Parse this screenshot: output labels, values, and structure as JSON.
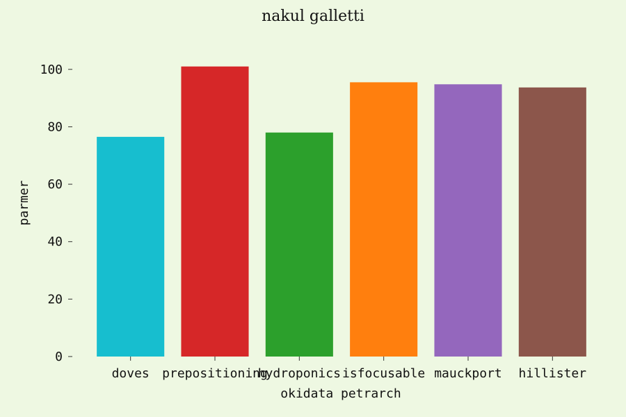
{
  "chart_data": {
    "type": "bar",
    "title": "nakul galletti",
    "xlabel": "okidata petrarch",
    "ylabel": "parmer",
    "categories": [
      "doves",
      "prepositioning",
      "hydroponics",
      "isfocusable",
      "mauckport",
      "hillister"
    ],
    "values": [
      76.5,
      101,
      78,
      95.5,
      94.8,
      93.7
    ],
    "colors": [
      "#17becf",
      "#d62728",
      "#2ca02c",
      "#ff7f0e",
      "#9467bd",
      "#8c564b"
    ],
    "yticks": [
      0,
      20,
      40,
      60,
      80,
      100
    ],
    "ylim": [
      0,
      106
    ],
    "grid": false,
    "legend": "none"
  }
}
